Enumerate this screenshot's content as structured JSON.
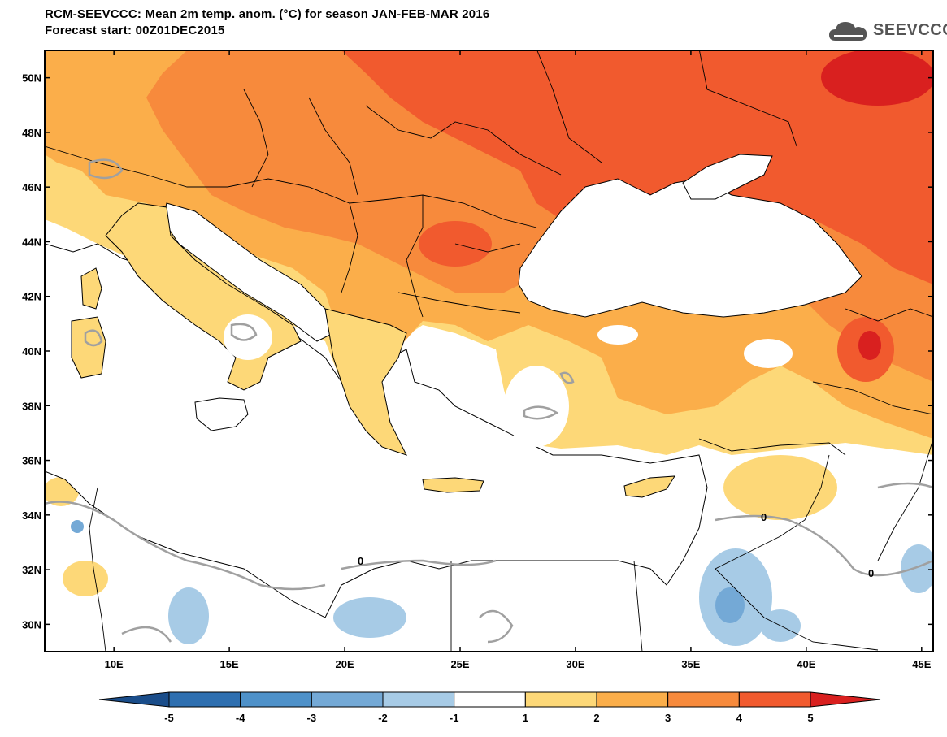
{
  "title": {
    "line1": "RCM-SEEVCCC: Mean 2m temp. anom. (°C) for season JAN-FEB-MAR 2016",
    "line2": "Forecast start: 00Z01DEC2015"
  },
  "logo": {
    "text": "SEEVCCC",
    "icon": "cloud-icon"
  },
  "map": {
    "lon_range": [
      7,
      45.5
    ],
    "lat_range": [
      29,
      51
    ],
    "lat_ticks": [
      {
        "value": 50,
        "label": "50N"
      },
      {
        "value": 48,
        "label": "48N"
      },
      {
        "value": 46,
        "label": "46N"
      },
      {
        "value": 44,
        "label": "44N"
      },
      {
        "value": 42,
        "label": "42N"
      },
      {
        "value": 40,
        "label": "40N"
      },
      {
        "value": 38,
        "label": "38N"
      },
      {
        "value": 36,
        "label": "36N"
      },
      {
        "value": 34,
        "label": "34N"
      },
      {
        "value": 32,
        "label": "32N"
      },
      {
        "value": 30,
        "label": "30N"
      }
    ],
    "lon_ticks": [
      {
        "value": 10,
        "label": "10E"
      },
      {
        "value": 15,
        "label": "15E"
      },
      {
        "value": 20,
        "label": "20E"
      },
      {
        "value": 25,
        "label": "25E"
      },
      {
        "value": 30,
        "label": "30E"
      },
      {
        "value": 35,
        "label": "35E"
      },
      {
        "value": 40,
        "label": "40E"
      },
      {
        "value": 45,
        "label": "45E"
      }
    ],
    "contour_labels": [
      "0",
      "0",
      "0"
    ]
  },
  "colorbar": {
    "ticks": [
      "-5",
      "-4",
      "-3",
      "-2",
      "-1",
      "1",
      "2",
      "3",
      "4",
      "5"
    ],
    "colors": [
      "#1a4d8a",
      "#2e6fb0",
      "#4e91c9",
      "#74a9d6",
      "#a7cbe6",
      "#ffffff",
      "#fdd878",
      "#fbae4a",
      "#f78a3c",
      "#f15a2e",
      "#d9201f"
    ]
  }
}
